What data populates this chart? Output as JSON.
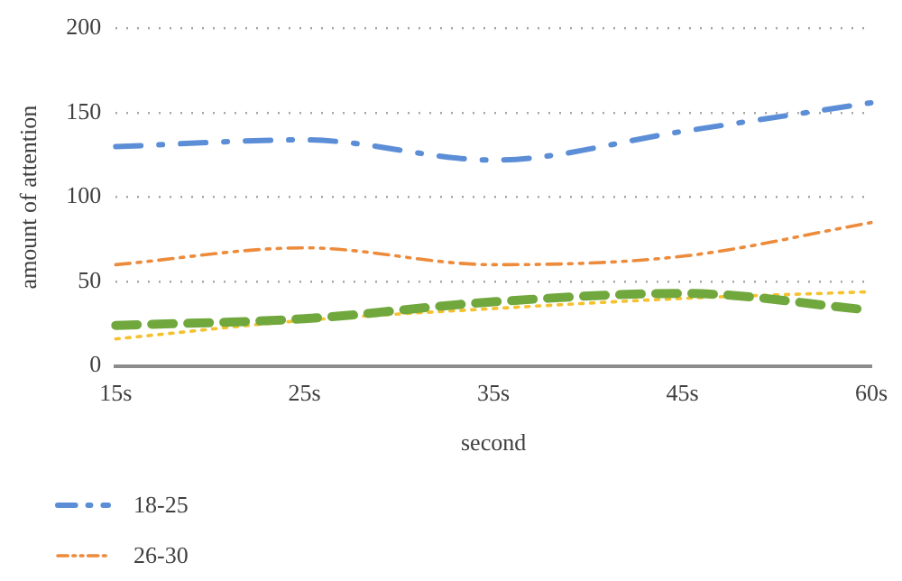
{
  "chart_data": {
    "type": "line",
    "xlabel": "second",
    "ylabel": "amount of attention",
    "categories": [
      "15s",
      "25s",
      "35s",
      "45s",
      "60s"
    ],
    "series": [
      {
        "name": "18-25",
        "color": "#5b8ed6",
        "line_style": "dashed",
        "values": [
          130,
          134,
          122,
          139,
          156
        ]
      },
      {
        "name": "26-30",
        "color": "#ed8b3c",
        "line_style": "dashed",
        "values": [
          60,
          70,
          60,
          65,
          85
        ]
      },
      {
        "color": "#70a83e",
        "line_style": "dashed",
        "values": [
          24,
          28,
          38,
          43,
          33
        ]
      },
      {
        "color": "#f5c12e",
        "line_style": "dotted",
        "values": [
          16,
          27,
          34,
          40,
          44
        ]
      }
    ],
    "ylim": [
      0,
      200
    ],
    "yticks": [
      0,
      50,
      100,
      150,
      200
    ],
    "grid": "y",
    "legend": "bottom",
    "marker": "none"
  }
}
